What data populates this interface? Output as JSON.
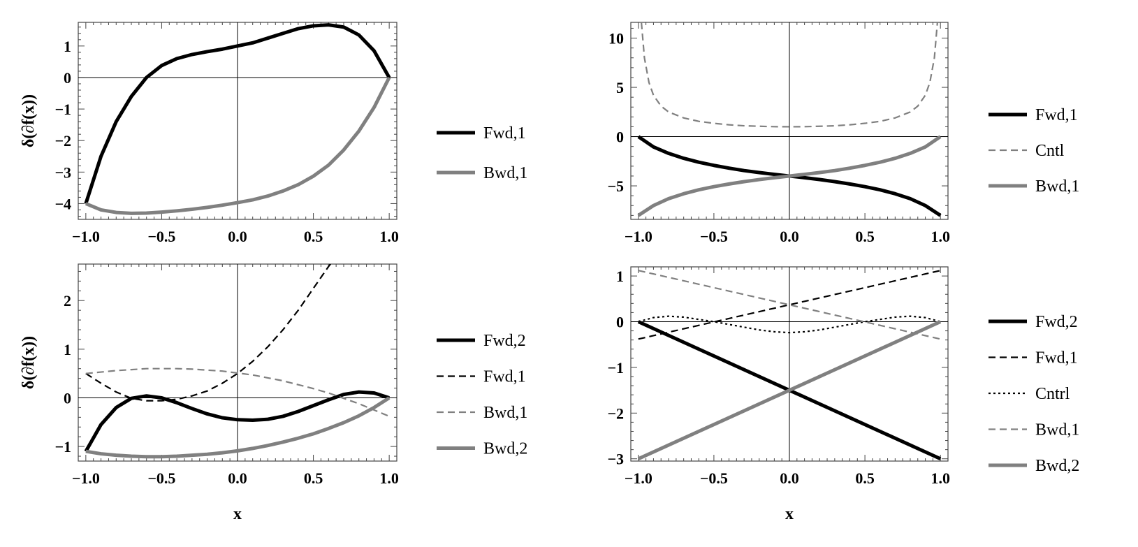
{
  "chart_data": [
    {
      "type": "line",
      "panel": "top-left",
      "xlabel": "",
      "ylabel": "δ(∂f(x))",
      "xlim": [
        -1.05,
        1.05
      ],
      "ylim": [
        -4.5,
        1.75
      ],
      "xticks": [
        -1.0,
        -0.5,
        0.0,
        0.5,
        1.0
      ],
      "xtick_labels": [
        "−1.0",
        "−0.5",
        "0.0",
        "0.5",
        "1.0"
      ],
      "yticks": [
        -4,
        -3,
        -2,
        -1,
        0,
        1
      ],
      "ytick_labels": [
        "−4",
        "−3",
        "−2",
        "−1",
        "0",
        "1"
      ],
      "legend_position": "right",
      "series": [
        {
          "name": "Fwd,1",
          "style": "solid-thick",
          "color": "#000000",
          "x": [
            -1.0,
            -0.9,
            -0.8,
            -0.7,
            -0.6,
            -0.5,
            -0.4,
            -0.3,
            -0.2,
            -0.1,
            0.0,
            0.1,
            0.2,
            0.3,
            0.4,
            0.5,
            0.6,
            0.7,
            0.8,
            0.9,
            1.0
          ],
          "y": [
            -4.0,
            -2.5,
            -1.4,
            -0.6,
            0.0,
            0.38,
            0.6,
            0.73,
            0.82,
            0.9,
            1.0,
            1.1,
            1.25,
            1.4,
            1.55,
            1.64,
            1.67,
            1.6,
            1.35,
            0.85,
            0.0
          ]
        },
        {
          "name": "Bwd,1",
          "style": "solid-thick",
          "color": "#808080",
          "x": [
            -1.0,
            -0.9,
            -0.8,
            -0.7,
            -0.6,
            -0.5,
            -0.4,
            -0.3,
            -0.2,
            -0.1,
            0.0,
            0.1,
            0.2,
            0.3,
            0.4,
            0.5,
            0.6,
            0.7,
            0.8,
            0.9,
            1.0
          ],
          "y": [
            -4.0,
            -4.2,
            -4.28,
            -4.31,
            -4.3,
            -4.27,
            -4.23,
            -4.18,
            -4.12,
            -4.05,
            -3.97,
            -3.88,
            -3.76,
            -3.6,
            -3.4,
            -3.13,
            -2.78,
            -2.3,
            -1.7,
            -0.95,
            0.0
          ]
        }
      ]
    },
    {
      "type": "line",
      "panel": "top-right",
      "xlabel": "",
      "ylabel": "",
      "xlim": [
        -1.05,
        1.05
      ],
      "ylim": [
        -8.4,
        11.6
      ],
      "xticks": [
        -1.0,
        -0.5,
        0.0,
        0.5,
        1.0
      ],
      "xtick_labels": [
        "−1.0",
        "−0.5",
        "0.0",
        "0.5",
        "1.0"
      ],
      "yticks": [
        -5,
        0,
        5,
        10
      ],
      "ytick_labels": [
        "−5",
        "0",
        "5",
        "10"
      ],
      "legend_position": "right",
      "series": [
        {
          "name": "Fwd,1",
          "style": "solid-thick",
          "color": "#000000",
          "x": [
            -1.0,
            -0.9,
            -0.8,
            -0.7,
            -0.6,
            -0.5,
            -0.4,
            -0.3,
            -0.2,
            -0.1,
            0.0,
            0.1,
            0.2,
            0.3,
            0.4,
            0.5,
            0.6,
            0.7,
            0.8,
            0.9,
            1.0
          ],
          "y": [
            0.0,
            -1.05,
            -1.7,
            -2.2,
            -2.6,
            -2.92,
            -3.2,
            -3.45,
            -3.65,
            -3.83,
            -4.0,
            -4.17,
            -4.36,
            -4.57,
            -4.81,
            -5.08,
            -5.4,
            -5.8,
            -6.3,
            -7.0,
            -8.0
          ]
        },
        {
          "name": "Cntl",
          "style": "dashed-thin",
          "color": "#808080",
          "x": [
            -0.98,
            -0.96,
            -0.93,
            -0.9,
            -0.85,
            -0.8,
            -0.7,
            -0.6,
            -0.5,
            -0.4,
            -0.3,
            -0.2,
            -0.1,
            0.0,
            0.1,
            0.2,
            0.3,
            0.4,
            0.5,
            0.6,
            0.7,
            0.8,
            0.85,
            0.9,
            0.93,
            0.96,
            0.98
          ],
          "y": [
            11.6,
            8.0,
            5.5,
            4.2,
            3.1,
            2.5,
            1.9,
            1.55,
            1.35,
            1.2,
            1.1,
            1.05,
            1.01,
            1.0,
            1.01,
            1.05,
            1.1,
            1.2,
            1.35,
            1.55,
            1.9,
            2.5,
            3.1,
            4.2,
            5.5,
            8.0,
            11.6
          ]
        },
        {
          "name": "Bwd,1",
          "style": "solid-thick",
          "color": "#808080",
          "x": [
            -1.0,
            -0.9,
            -0.8,
            -0.7,
            -0.6,
            -0.5,
            -0.4,
            -0.3,
            -0.2,
            -0.1,
            0.0,
            0.1,
            0.2,
            0.3,
            0.4,
            0.5,
            0.6,
            0.7,
            0.8,
            0.9,
            1.0
          ],
          "y": [
            -8.0,
            -7.0,
            -6.3,
            -5.8,
            -5.4,
            -5.08,
            -4.81,
            -4.57,
            -4.36,
            -4.17,
            -4.0,
            -3.83,
            -3.65,
            -3.45,
            -3.2,
            -2.92,
            -2.6,
            -2.2,
            -1.7,
            -1.05,
            0.0
          ]
        }
      ]
    },
    {
      "type": "line",
      "panel": "bottom-left",
      "xlabel": "x",
      "ylabel": "δ(∂f(x))",
      "xlim": [
        -1.05,
        1.05
      ],
      "ylim": [
        -1.3,
        2.75
      ],
      "xticks": [
        -1.0,
        -0.5,
        0.0,
        0.5,
        1.0
      ],
      "xtick_labels": [
        "−1.0",
        "−0.5",
        "0.0",
        "0.5",
        "1.0"
      ],
      "yticks": [
        -1,
        0,
        1,
        2
      ],
      "ytick_labels": [
        "−1",
        "0",
        "1",
        "2"
      ],
      "legend_position": "right",
      "series": [
        {
          "name": "Fwd,2",
          "style": "solid-thick",
          "color": "#000000",
          "x": [
            -1.0,
            -0.9,
            -0.8,
            -0.7,
            -0.6,
            -0.5,
            -0.4,
            -0.3,
            -0.2,
            -0.1,
            0.0,
            0.1,
            0.2,
            0.3,
            0.4,
            0.5,
            0.6,
            0.7,
            0.8,
            0.9,
            1.0
          ],
          "y": [
            -1.1,
            -0.55,
            -0.2,
            -0.01,
            0.04,
            0.0,
            -0.1,
            -0.22,
            -0.33,
            -0.41,
            -0.45,
            -0.46,
            -0.44,
            -0.38,
            -0.28,
            -0.16,
            -0.04,
            0.07,
            0.12,
            0.1,
            0.0
          ]
        },
        {
          "name": "Fwd,1",
          "style": "dashed-thin",
          "color": "#000000",
          "x": [
            -1.0,
            -0.9,
            -0.8,
            -0.7,
            -0.6,
            -0.5,
            -0.4,
            -0.3,
            -0.2,
            -0.1,
            0.0,
            0.1,
            0.2,
            0.3,
            0.4,
            0.5,
            0.6,
            0.62
          ],
          "y": [
            0.5,
            0.3,
            0.12,
            -0.01,
            -0.06,
            -0.06,
            -0.03,
            0.04,
            0.14,
            0.3,
            0.5,
            0.75,
            1.05,
            1.4,
            1.8,
            2.25,
            2.7,
            2.78
          ]
        },
        {
          "name": "Bwd,1",
          "style": "dashed-thin",
          "color": "#808080",
          "x": [
            -1.0,
            -0.9,
            -0.8,
            -0.7,
            -0.6,
            -0.5,
            -0.4,
            -0.3,
            -0.2,
            -0.1,
            0.0,
            0.1,
            0.2,
            0.3,
            0.4,
            0.5,
            0.6,
            0.7,
            0.8,
            0.9,
            1.0
          ],
          "y": [
            0.5,
            0.53,
            0.56,
            0.58,
            0.6,
            0.6,
            0.6,
            0.59,
            0.57,
            0.55,
            0.51,
            0.47,
            0.41,
            0.35,
            0.27,
            0.19,
            0.1,
            -0.01,
            -0.12,
            -0.25,
            -0.38
          ]
        },
        {
          "name": "Bwd,2",
          "style": "solid-thick",
          "color": "#808080",
          "x": [
            -1.0,
            -0.9,
            -0.8,
            -0.7,
            -0.6,
            -0.5,
            -0.4,
            -0.3,
            -0.2,
            -0.1,
            0.0,
            0.1,
            0.2,
            0.3,
            0.4,
            0.5,
            0.6,
            0.7,
            0.8,
            0.9,
            1.0
          ],
          "y": [
            -1.1,
            -1.15,
            -1.18,
            -1.2,
            -1.21,
            -1.21,
            -1.2,
            -1.18,
            -1.16,
            -1.13,
            -1.09,
            -1.04,
            -0.98,
            -0.91,
            -0.83,
            -0.74,
            -0.63,
            -0.51,
            -0.37,
            -0.2,
            0.0
          ]
        }
      ]
    },
    {
      "type": "line",
      "panel": "bottom-right",
      "xlabel": "x",
      "ylabel": "",
      "xlim": [
        -1.05,
        1.05
      ],
      "ylim": [
        -3.05,
        1.2
      ],
      "xticks": [
        -1.0,
        -0.5,
        0.0,
        0.5,
        1.0
      ],
      "xtick_labels": [
        "−1.0",
        "−0.5",
        "0.0",
        "0.5",
        "1.0"
      ],
      "yticks": [
        -3,
        -2,
        -1,
        0,
        1
      ],
      "ytick_labels": [
        "−3",
        "−2",
        "−1",
        "0",
        "1"
      ],
      "legend_position": "right",
      "series": [
        {
          "name": "Fwd,2",
          "style": "solid-thick",
          "color": "#000000",
          "x": [
            -1.0,
            1.0
          ],
          "y": [
            0.0,
            -3.0
          ]
        },
        {
          "name": "Fwd,1",
          "style": "dashed-thin",
          "color": "#000000",
          "x": [
            -1.0,
            1.0
          ],
          "y": [
            -0.38,
            1.12
          ]
        },
        {
          "name": "Cntrl",
          "style": "dotted-thin",
          "color": "#000000",
          "x": [
            -1.0,
            -0.9,
            -0.8,
            -0.7,
            -0.6,
            -0.5,
            -0.4,
            -0.3,
            -0.2,
            -0.1,
            0.0,
            0.1,
            0.2,
            0.3,
            0.4,
            0.5,
            0.6,
            0.7,
            0.8,
            0.9,
            1.0
          ],
          "y": [
            0.0,
            0.09,
            0.12,
            0.1,
            0.05,
            0.0,
            -0.06,
            -0.12,
            -0.18,
            -0.22,
            -0.24,
            -0.22,
            -0.18,
            -0.12,
            -0.06,
            0.0,
            0.05,
            0.1,
            0.12,
            0.09,
            0.0
          ]
        },
        {
          "name": "Bwd,1",
          "style": "dashed-thin",
          "color": "#808080",
          "x": [
            -1.0,
            1.0
          ],
          "y": [
            1.12,
            -0.38
          ]
        },
        {
          "name": "Bwd,2",
          "style": "solid-thick",
          "color": "#808080",
          "x": [
            -1.0,
            1.0
          ],
          "y": [
            -3.0,
            0.0
          ]
        }
      ]
    }
  ]
}
